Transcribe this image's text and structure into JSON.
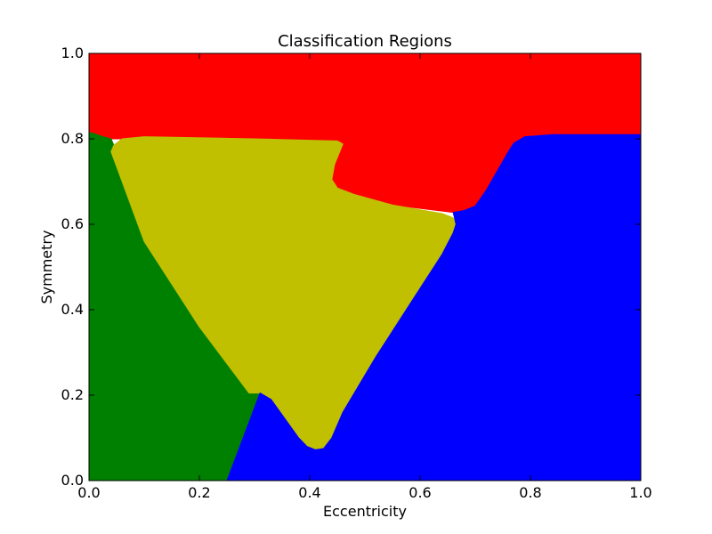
{
  "chart_data": {
    "type": "heatmap",
    "title": "Classification Regions",
    "xlabel": "Eccentricity",
    "ylabel": "Symmetry",
    "xlim": [
      0,
      1
    ],
    "ylim": [
      0,
      1
    ],
    "grid": false,
    "x_ticks": [
      "0.0",
      "0.2",
      "0.4",
      "0.6",
      "0.8",
      "1.0"
    ],
    "y_ticks": [
      "0.0",
      "0.2",
      "0.4",
      "0.6",
      "0.8",
      "1.0"
    ],
    "regions": [
      {
        "color": "#ff0000",
        "polygon": [
          [
            0,
            1
          ],
          [
            1,
            1
          ],
          [
            1,
            0.81
          ],
          [
            0.93,
            0.81
          ],
          [
            0.84,
            0.81
          ],
          [
            0.79,
            0.805
          ],
          [
            0.77,
            0.79
          ],
          [
            0.76,
            0.77
          ],
          [
            0.72,
            0.68
          ],
          [
            0.7,
            0.643
          ],
          [
            0.68,
            0.632
          ],
          [
            0.66,
            0.628
          ],
          [
            0.55,
            0.645
          ],
          [
            0.48,
            0.67
          ],
          [
            0.45,
            0.685
          ],
          [
            0.44,
            0.705
          ],
          [
            0.445,
            0.74
          ],
          [
            0.455,
            0.772
          ],
          [
            0.46,
            0.788
          ],
          [
            0.45,
            0.795
          ],
          [
            0.3,
            0.8
          ],
          [
            0.1,
            0.805
          ],
          [
            0.06,
            0.8
          ],
          [
            0.04,
            0.8
          ],
          [
            0.025,
            0.805
          ],
          [
            0.01,
            0.812
          ],
          [
            0,
            0.815
          ]
        ]
      },
      {
        "color": "#008000",
        "polygon": [
          [
            0,
            0
          ],
          [
            0.25,
            0
          ],
          [
            0.31,
            0.205
          ],
          [
            0.29,
            0.205
          ],
          [
            0.2,
            0.36
          ],
          [
            0.1,
            0.56
          ],
          [
            0.04,
            0.77
          ],
          [
            0.045,
            0.785
          ],
          [
            0.04,
            0.8
          ],
          [
            0.025,
            0.805
          ],
          [
            0.01,
            0.812
          ],
          [
            0,
            0.815
          ]
        ]
      },
      {
        "color": "#c0bf00",
        "polygon": [
          [
            0.04,
            0.77
          ],
          [
            0.045,
            0.785
          ],
          [
            0.06,
            0.8
          ],
          [
            0.1,
            0.805
          ],
          [
            0.3,
            0.8
          ],
          [
            0.45,
            0.795
          ],
          [
            0.46,
            0.788
          ],
          [
            0.455,
            0.772
          ],
          [
            0.445,
            0.74
          ],
          [
            0.44,
            0.705
          ],
          [
            0.45,
            0.685
          ],
          [
            0.48,
            0.67
          ],
          [
            0.55,
            0.645
          ],
          [
            0.64,
            0.625
          ],
          [
            0.66,
            0.615
          ],
          [
            0.665,
            0.6
          ],
          [
            0.66,
            0.58
          ],
          [
            0.64,
            0.53
          ],
          [
            0.58,
            0.41
          ],
          [
            0.52,
            0.29
          ],
          [
            0.46,
            0.16
          ],
          [
            0.44,
            0.1
          ],
          [
            0.425,
            0.075
          ],
          [
            0.41,
            0.072
          ],
          [
            0.395,
            0.08
          ],
          [
            0.38,
            0.1
          ],
          [
            0.355,
            0.145
          ],
          [
            0.33,
            0.19
          ],
          [
            0.31,
            0.205
          ],
          [
            0.29,
            0.205
          ],
          [
            0.2,
            0.36
          ],
          [
            0.1,
            0.56
          ]
        ]
      },
      {
        "color": "#0000ff",
        "polygon": [
          [
            0.25,
            0
          ],
          [
            1,
            0
          ],
          [
            1,
            0.81
          ],
          [
            0.93,
            0.81
          ],
          [
            0.84,
            0.81
          ],
          [
            0.79,
            0.805
          ],
          [
            0.77,
            0.79
          ],
          [
            0.76,
            0.77
          ],
          [
            0.72,
            0.68
          ],
          [
            0.7,
            0.643
          ],
          [
            0.68,
            0.632
          ],
          [
            0.66,
            0.628
          ],
          [
            0.665,
            0.6
          ],
          [
            0.66,
            0.58
          ],
          [
            0.64,
            0.53
          ],
          [
            0.58,
            0.41
          ],
          [
            0.52,
            0.29
          ],
          [
            0.46,
            0.16
          ],
          [
            0.44,
            0.1
          ],
          [
            0.425,
            0.075
          ],
          [
            0.41,
            0.072
          ],
          [
            0.395,
            0.08
          ],
          [
            0.38,
            0.1
          ],
          [
            0.355,
            0.145
          ],
          [
            0.33,
            0.19
          ],
          [
            0.31,
            0.205
          ]
        ]
      }
    ]
  }
}
